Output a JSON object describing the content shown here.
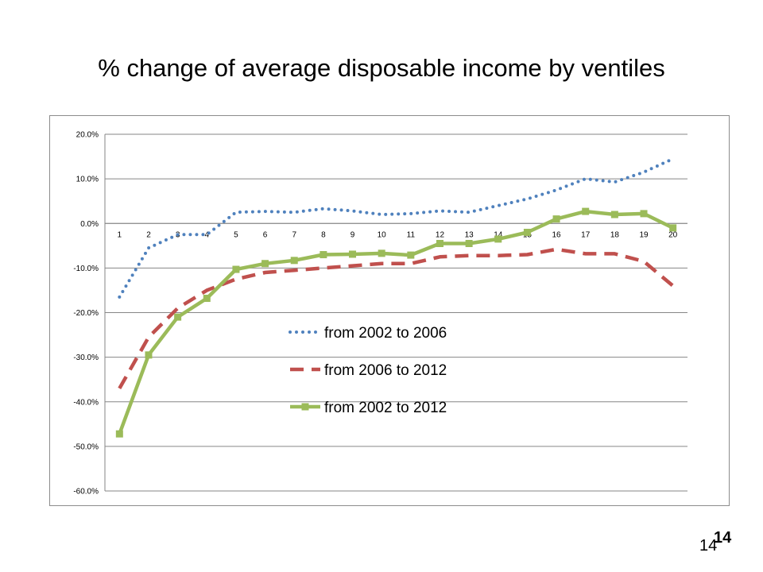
{
  "slide": {
    "title": "% change of average disposable  income by ventiles",
    "page_number_bold": "14",
    "page_number_plain": "14"
  },
  "chart_data": {
    "type": "line",
    "title": "",
    "xlabel": "",
    "ylabel": "",
    "categories": [
      "1",
      "2",
      "3",
      "4",
      "5",
      "6",
      "7",
      "8",
      "9",
      "10",
      "11",
      "12",
      "13",
      "14",
      "15",
      "16",
      "17",
      "18",
      "19",
      "20"
    ],
    "ylim": [
      -60,
      20
    ],
    "y_ticks": [
      "20.0%",
      "10.0%",
      "0.0%",
      "-10.0%",
      "-20.0%",
      "-30.0%",
      "-40.0%",
      "-50.0%",
      "-60.0%"
    ],
    "grid": true,
    "legend_position": "center",
    "series": [
      {
        "name": "from 2002 to  2006",
        "color": "#4f81bd",
        "style": "dotted",
        "marker": "none",
        "values": [
          -16.5,
          -5.5,
          -2.5,
          -2.5,
          2.5,
          2.7,
          2.5,
          3.3,
          2.8,
          2.0,
          2.2,
          2.8,
          2.5,
          4.0,
          5.5,
          7.5,
          10.0,
          9.3,
          11.5,
          14.5
        ]
      },
      {
        "name": "from 2006 to 2012",
        "color": "#c0504d",
        "style": "dashed",
        "marker": "none",
        "values": [
          -37.0,
          -25.5,
          -19.0,
          -15.0,
          -12.5,
          -11.0,
          -10.5,
          -10.0,
          -9.5,
          -9.0,
          -9.0,
          -7.5,
          -7.2,
          -7.2,
          -7.0,
          -5.8,
          -6.8,
          -6.8,
          -8.5,
          -14.0
        ]
      },
      {
        "name": "from 2002 to 2012",
        "color": "#9bbb59",
        "style": "solid",
        "marker": "square",
        "values": [
          -47.2,
          -29.5,
          -21.0,
          -16.8,
          -10.3,
          -9.0,
          -8.3,
          -7.0,
          -6.9,
          -6.7,
          -7.1,
          -4.5,
          -4.5,
          -3.5,
          -2.0,
          1.0,
          2.7,
          2.0,
          2.2,
          -1.0
        ]
      }
    ]
  }
}
